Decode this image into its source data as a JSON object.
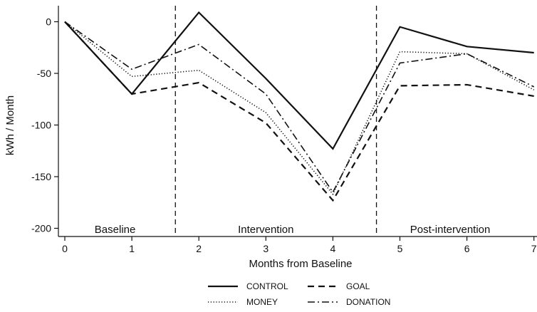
{
  "chart_data": {
    "type": "line",
    "title": "",
    "xlabel": "Months from Baseline",
    "ylabel": "kWh / Month",
    "xlim": [
      0,
      7
    ],
    "ylim": [
      -200,
      15
    ],
    "x": [
      0,
      1,
      2,
      3,
      4,
      5,
      6,
      7
    ],
    "x_ticks": [
      "0",
      "1",
      "2",
      "3",
      "4",
      "5",
      "6",
      "7"
    ],
    "y_ticks": [
      0,
      -50,
      -100,
      -150,
      -200
    ],
    "y_tick_labels": [
      "0",
      "-50",
      "-100",
      "-150",
      "-200"
    ],
    "grid": false,
    "legend_position": "bottom",
    "phase_dividers": [
      1.65,
      4.65
    ],
    "phases": [
      {
        "label": "Baseline",
        "x": 0.75
      },
      {
        "label": "Intervention",
        "x": 3.0
      },
      {
        "label": "Post-intervention",
        "x": 5.75
      }
    ],
    "series": [
      {
        "name": "CONTROL",
        "style": "solid",
        "values": [
          0,
          -70,
          9,
          -55,
          -123,
          -5,
          -24,
          -30
        ]
      },
      {
        "name": "GOAL",
        "style": "dashed",
        "values": [
          0,
          -70,
          -59,
          -98,
          -173,
          -62,
          -61,
          -72
        ]
      },
      {
        "name": "MONEY",
        "style": "dotted",
        "values": [
          0,
          -53,
          -47,
          -88,
          -167,
          -29,
          -31,
          -66
        ]
      },
      {
        "name": "DONATION",
        "style": "dashdot",
        "values": [
          0,
          -46,
          -22,
          -70,
          -165,
          -40,
          -31,
          -63
        ]
      }
    ],
    "line_color": "#111111"
  }
}
